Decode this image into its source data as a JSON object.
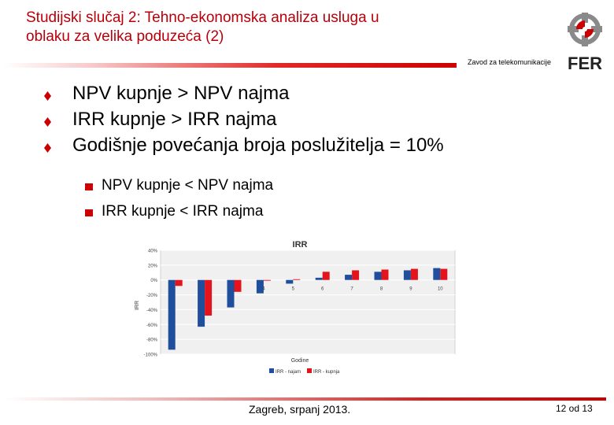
{
  "slide": {
    "title_line1": "Studijski slučaj 2: Tehno-ekonomska analiza usluga u",
    "title_line2": "oblaku za velika poduzeća (2)",
    "department": "Zavod za telekomunikacije",
    "logo_text": "FER",
    "bullets": [
      "NPV kupnje > NPV najma",
      "IRR kupnje > IRR najma",
      "Godišnje povećanja broja poslužitelja = 10%"
    ],
    "sub_bullets": [
      "NPV kupnje < NPV najma",
      "IRR kupnje < IRR najma"
    ],
    "footer": "Zagreb, srpanj 2013.",
    "page": "12 od 13"
  },
  "colors": {
    "accent": "#cc0000",
    "series_najam": "#1f4e9c",
    "series_kupnja": "#e3141b",
    "plot_bg": "#f0f0f0"
  },
  "chart_data": {
    "type": "bar",
    "title": "IRR",
    "xlabel": "Godine",
    "ylabel": "IRR",
    "ylim": [
      -100,
      40
    ],
    "yticks": [
      "40%",
      "20%",
      "0%",
      "-20%",
      "-40%",
      "-60%",
      "-80%",
      "-100%"
    ],
    "ytick_values": [
      40,
      20,
      0,
      -20,
      -40,
      -60,
      -80,
      -100
    ],
    "grid": true,
    "legend": "bottom",
    "categories": [
      "1",
      "2",
      "3",
      "4",
      "5",
      "6",
      "7",
      "8",
      "9",
      "10"
    ],
    "series": [
      {
        "name": "IRR - najam",
        "values": [
          -94,
          -63,
          -37,
          -18,
          -5,
          3,
          7,
          11,
          13,
          16
        ]
      },
      {
        "name": "IRR - kupnja",
        "values": [
          -8,
          -48,
          -16,
          -1,
          1,
          11,
          13,
          14,
          15,
          15
        ]
      }
    ]
  }
}
